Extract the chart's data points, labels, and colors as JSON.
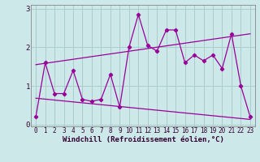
{
  "xlabel": "Windchill (Refroidissement éolien,°C)",
  "background_color": "#cce8e8",
  "grid_color": "#aacccc",
  "line_color": "#990099",
  "x_values": [
    0,
    1,
    2,
    3,
    4,
    5,
    6,
    7,
    8,
    9,
    10,
    11,
    12,
    13,
    14,
    15,
    16,
    17,
    18,
    19,
    20,
    21,
    22,
    23
  ],
  "line1_y": [
    0.2,
    1.6,
    0.8,
    0.8,
    1.4,
    0.65,
    0.6,
    0.65,
    1.3,
    0.45,
    2.0,
    2.85,
    2.05,
    1.9,
    2.45,
    2.45,
    1.6,
    1.8,
    1.65,
    1.8,
    1.45,
    2.35,
    1.0,
    0.2
  ],
  "trend1_x": [
    0,
    23
  ],
  "trend1_y": [
    1.55,
    2.35
  ],
  "trend2_x": [
    0,
    23
  ],
  "trend2_y": [
    0.68,
    0.13
  ],
  "xlim": [
    -0.5,
    23.5
  ],
  "ylim": [
    -0.05,
    3.1
  ],
  "yticks": [
    0,
    1,
    2,
    3
  ],
  "figsize": [
    3.2,
    2.0
  ],
  "dpi": 100,
  "tick_fontsize": 5.5,
  "xlabel_fontsize": 6.5
}
